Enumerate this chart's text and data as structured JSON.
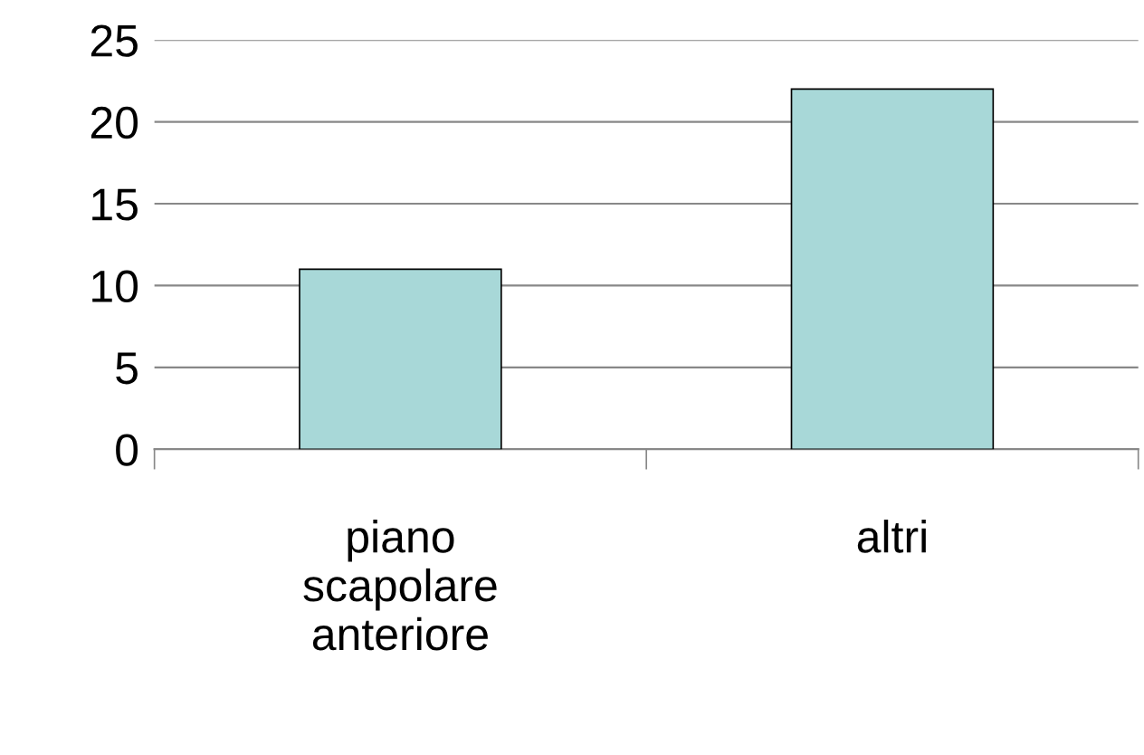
{
  "chart_data": {
    "type": "bar",
    "categories": [
      "piano scapolare anteriore",
      "altri"
    ],
    "values": [
      11,
      22
    ],
    "color": "#a8d8d8",
    "ylim": [
      0,
      25
    ],
    "yticks": [
      0,
      5,
      10,
      15,
      20,
      25
    ],
    "grid": "y"
  }
}
